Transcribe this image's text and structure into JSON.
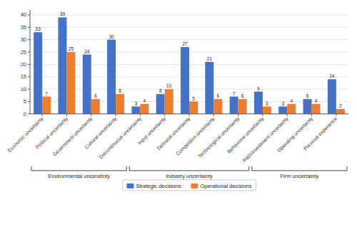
{
  "chart_data": {
    "type": "bar",
    "categories": [
      "Economic uncertainty",
      "Political uncertainty",
      "Government uncertainty",
      "Cultural uncertainty",
      "Discontinuous uncertainty",
      "Input uncertainty",
      "Demand uncertainty",
      "Competition uncertainty",
      "Technological uncertainty",
      "Behavioral uncertainty",
      "R&D/investment uncertainty",
      "Operating uncertainty",
      "Previous experience"
    ],
    "series": [
      {
        "name": "Strategic decisions",
        "color": "#4472C4",
        "values": [
          33,
          39,
          24,
          30,
          3,
          8,
          27,
          21,
          7,
          9,
          3,
          6,
          14
        ]
      },
      {
        "name": "Operational decisions",
        "color": "#ED7D31",
        "values": [
          7,
          25,
          6,
          8,
          4,
          10,
          5,
          6,
          6,
          3,
          4,
          4,
          2
        ]
      }
    ],
    "groups": [
      {
        "name": "Environmental unceratinty",
        "categories": [
          "Economic uncertainty",
          "Political uncertainty",
          "Government uncertainty",
          "Cultural uncertainty"
        ]
      },
      {
        "name": "Industry uncertainty",
        "categories": [
          "Discontinuous uncertainty",
          "Input uncertainty",
          "Demand uncertainty",
          "Competition uncertainty",
          "Technological uncertainty"
        ]
      },
      {
        "name": "Firm uncertainty",
        "categories": [
          "Behavioral uncertainty",
          "R&D/investment uncertainty",
          "Operating uncertainty",
          "Previous experience"
        ]
      }
    ],
    "ylim": [
      0,
      42
    ],
    "yticks": [
      0,
      5,
      10,
      15,
      20,
      25,
      30,
      35,
      40
    ],
    "grid": true,
    "data_labels": true,
    "legend": "bottom"
  }
}
